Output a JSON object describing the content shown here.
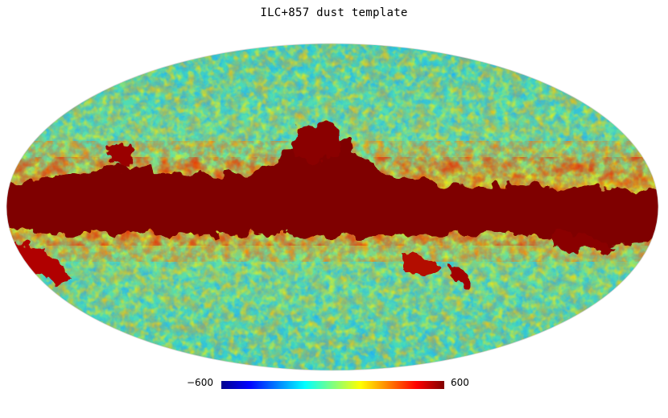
{
  "title": "ILC+857 dust template",
  "colorbar": {
    "min_label": "−600",
    "max_label": "600",
    "colormap": "jet",
    "stops": [
      "#00008f",
      "#0000ff",
      "#00ffff",
      "#ffff00",
      "#ff0000",
      "#800000"
    ]
  },
  "map": {
    "projection": "mollweide",
    "description_colors": {
      "background_field": "#3fd8b8",
      "galactic_plane": "#7f0000",
      "outside": "#ffffff"
    }
  }
}
